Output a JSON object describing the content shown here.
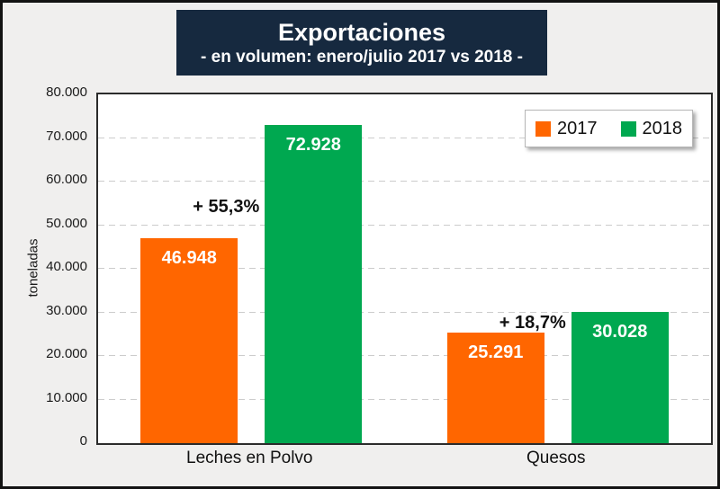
{
  "title": {
    "line1": "Exportaciones",
    "line2": "- en volumen: enero/julio 2017 vs 2018 -"
  },
  "chart_data": {
    "type": "bar",
    "categories": [
      "Leches en Polvo",
      "Quesos"
    ],
    "series": [
      {
        "name": "2017",
        "color": "#FF6600",
        "values": [
          46948,
          25291
        ],
        "value_labels": [
          "46.948",
          "25.291"
        ]
      },
      {
        "name": "2018",
        "color": "#00A850",
        "values": [
          72928,
          30028
        ],
        "value_labels": [
          "72.928",
          "30.028"
        ]
      }
    ],
    "annotations": [
      {
        "text": "+ 55,3%",
        "category": "Leches en Polvo"
      },
      {
        "text": "+ 18,7%",
        "category": "Quesos"
      }
    ],
    "ylabel": "toneladas",
    "ylim": [
      0,
      80000
    ],
    "yticks": [
      {
        "value": 0,
        "label": "0"
      },
      {
        "value": 10000,
        "label": "10.000"
      },
      {
        "value": 20000,
        "label": "20.000"
      },
      {
        "value": 30000,
        "label": "30.000"
      },
      {
        "value": 40000,
        "label": "40.000"
      },
      {
        "value": 50000,
        "label": "50.000"
      },
      {
        "value": 60000,
        "label": "60.000"
      },
      {
        "value": 70000,
        "label": "70.000"
      },
      {
        "value": 80000,
        "label": "80.000"
      }
    ],
    "grid": "horizontal-dashed",
    "legend_position": "top-right"
  },
  "colors": {
    "title_background": "#16293F",
    "title_text": "#FFFFFF",
    "page_background": "#F0EFEE",
    "plot_background": "#FFFFFF",
    "gridline": "#CCCCCC",
    "annotation_text": "#111111"
  }
}
